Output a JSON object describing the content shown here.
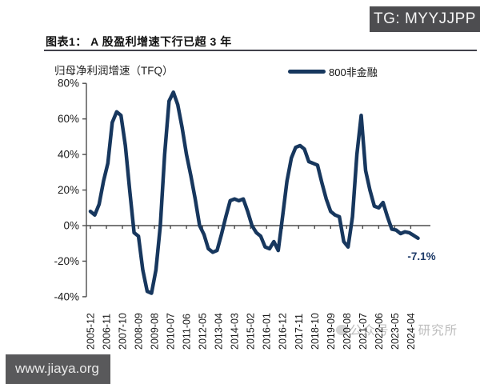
{
  "badges": {
    "telegram": "TG: MYYJJPP",
    "site": "www.jiaya.org"
  },
  "figure": {
    "title": "图表1： A 股盈利增速下行已超 3 年",
    "axis_title": "归母净利润增速（TFQ）",
    "legend": {
      "label": "800非金融"
    },
    "annotation": "-7.1%",
    "watermark": {
      "prefix": "公众号·",
      "suffix": "研究所"
    }
  },
  "colors": {
    "line": "#17375E",
    "axis": "#4d4d4d",
    "tick_text": "#1a1a1a",
    "annotation": "#1d3a68",
    "badge_bg": "#4d4d50"
  },
  "chart_data": {
    "type": "line",
    "title": "归母净利润增速（TFQ）",
    "ylabel": "",
    "xlabel": "",
    "ylim": [
      -40,
      80
    ],
    "y_ticks": [
      80,
      60,
      40,
      20,
      0,
      -20,
      -40
    ],
    "y_tick_suffix": "%",
    "grid": false,
    "legend_position": "top-right",
    "x_tick_labels": [
      "2005-12",
      "2006-11",
      "2007-10",
      "2008-09",
      "2009-08",
      "2010-07",
      "2011-06",
      "2012-05",
      "2013-04",
      "2014-03",
      "2015-02",
      "2016-01",
      "2016-12",
      "2017-11",
      "2018-10",
      "2019-09",
      "2020-08",
      "2021-07",
      "2022-06",
      "2023-05",
      "2024-04"
    ],
    "x_tick_interval_months": 11,
    "series": [
      {
        "name": "800非金融",
        "points": [
          [
            "2005-12",
            8
          ],
          [
            "2006-03",
            6
          ],
          [
            "2006-06",
            12
          ],
          [
            "2006-09",
            25
          ],
          [
            "2006-12",
            35
          ],
          [
            "2007-03",
            58
          ],
          [
            "2007-06",
            64
          ],
          [
            "2007-09",
            62
          ],
          [
            "2007-12",
            45
          ],
          [
            "2008-03",
            20
          ],
          [
            "2008-06",
            -4
          ],
          [
            "2008-09",
            -6
          ],
          [
            "2008-12",
            -25
          ],
          [
            "2009-03",
            -37
          ],
          [
            "2009-06",
            -38
          ],
          [
            "2009-09",
            -25
          ],
          [
            "2009-12",
            0
          ],
          [
            "2010-03",
            40
          ],
          [
            "2010-06",
            70
          ],
          [
            "2010-09",
            75
          ],
          [
            "2010-12",
            68
          ],
          [
            "2011-03",
            55
          ],
          [
            "2011-06",
            40
          ],
          [
            "2011-09",
            28
          ],
          [
            "2011-12",
            15
          ],
          [
            "2012-03",
            0
          ],
          [
            "2012-06",
            -5
          ],
          [
            "2012-09",
            -13
          ],
          [
            "2012-12",
            -15
          ],
          [
            "2013-03",
            -14
          ],
          [
            "2013-06",
            -5
          ],
          [
            "2013-09",
            5
          ],
          [
            "2013-12",
            14
          ],
          [
            "2014-03",
            15
          ],
          [
            "2014-06",
            14
          ],
          [
            "2014-09",
            15
          ],
          [
            "2014-12",
            8
          ],
          [
            "2015-03",
            0
          ],
          [
            "2015-06",
            -4
          ],
          [
            "2015-09",
            -6
          ],
          [
            "2015-12",
            -12
          ],
          [
            "2016-03",
            -13
          ],
          [
            "2016-06",
            -9
          ],
          [
            "2016-09",
            -14
          ],
          [
            "2016-12",
            5
          ],
          [
            "2017-03",
            25
          ],
          [
            "2017-06",
            38
          ],
          [
            "2017-09",
            44
          ],
          [
            "2017-12",
            45
          ],
          [
            "2018-03",
            43
          ],
          [
            "2018-06",
            36
          ],
          [
            "2018-09",
            35
          ],
          [
            "2018-12",
            34
          ],
          [
            "2019-03",
            24
          ],
          [
            "2019-06",
            15
          ],
          [
            "2019-09",
            8
          ],
          [
            "2019-12",
            6
          ],
          [
            "2020-03",
            5
          ],
          [
            "2020-06",
            -9
          ],
          [
            "2020-09",
            -12
          ],
          [
            "2020-12",
            5
          ],
          [
            "2021-03",
            40
          ],
          [
            "2021-06",
            62
          ],
          [
            "2021-09",
            31
          ],
          [
            "2021-12",
            20
          ],
          [
            "2022-03",
            11
          ],
          [
            "2022-06",
            10
          ],
          [
            "2022-09",
            13
          ],
          [
            "2022-12",
            5
          ],
          [
            "2023-03",
            -2
          ],
          [
            "2023-06",
            -2.5
          ],
          [
            "2023-09",
            -4.5
          ],
          [
            "2023-12",
            -3.5
          ],
          [
            "2024-03",
            -4
          ],
          [
            "2024-06",
            -5.5
          ],
          [
            "2024-09",
            -7.1
          ]
        ]
      }
    ],
    "annotation": {
      "text": "-7.1%",
      "attached_to": "last-point"
    }
  }
}
